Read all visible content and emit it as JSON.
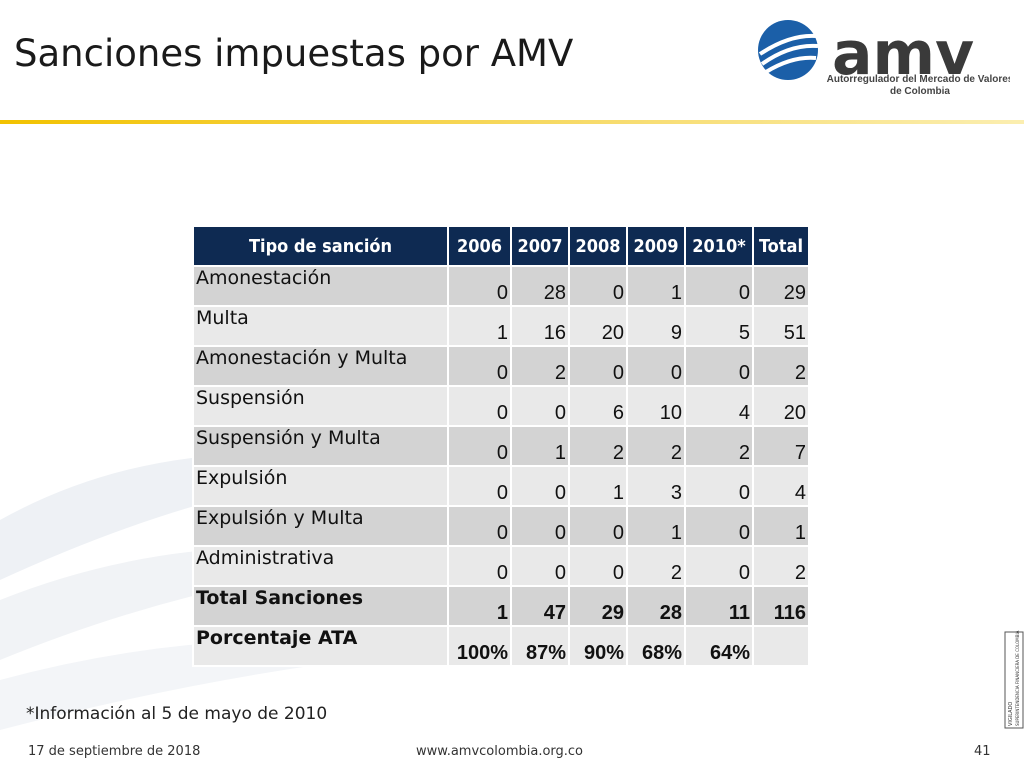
{
  "title": "Sanciones impuestas por AMV",
  "logo": {
    "name": "amv",
    "subtitle_line1": "Autorregulador del Mercado de Valores",
    "subtitle_line2": "de Colombia"
  },
  "table": {
    "header": [
      "Tipo de sanción",
      "2006",
      "2007",
      "2008",
      "2009",
      "2010*",
      "Total"
    ],
    "rows": [
      [
        "Amonestación",
        0,
        28,
        0,
        1,
        0,
        29
      ],
      [
        "Multa",
        1,
        16,
        20,
        9,
        5,
        51
      ],
      [
        "Amonestación y Multa",
        0,
        2,
        0,
        0,
        0,
        2
      ],
      [
        "Suspensión",
        0,
        0,
        6,
        10,
        4,
        20
      ],
      [
        "Suspensión y Multa",
        0,
        1,
        2,
        2,
        2,
        7
      ],
      [
        "Expulsión",
        0,
        0,
        1,
        3,
        0,
        4
      ],
      [
        "Expulsión y Multa",
        0,
        0,
        0,
        1,
        0,
        1
      ],
      [
        "Administrativa",
        0,
        0,
        0,
        2,
        0,
        2
      ],
      [
        "Total Sanciones",
        1,
        47,
        29,
        28,
        11,
        116
      ],
      [
        "Porcentaje ATA",
        "100%",
        "87%",
        "90%",
        "68%",
        "64%"
      ]
    ]
  },
  "footnote": "*Información al 5 de mayo de 2010",
  "footer": {
    "date": "17 de septiembre de 2018",
    "url": "www.amvcolombia.org.co",
    "page": "41"
  },
  "side_stamp": {
    "word": "VIGILADO",
    "org": "SUPERINTENDENCIA FINANCIERA DE COLOMBIA"
  }
}
